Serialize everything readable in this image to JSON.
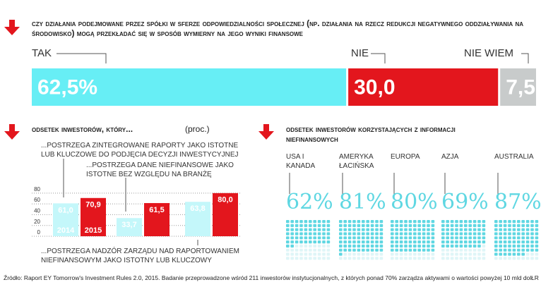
{
  "chart_data": [
    {
      "type": "stacked-bar",
      "title": "Czy działania podejmowane przez spółki w sferze odpowiedzialności społecznej (np. działania na rzecz redukcji negatywnego oddziaływania na środowisko) mogą przekładać się w sposób wymierny na jego wyniki finansowe",
      "categories": [
        "TAK",
        "NIE",
        "NIE WIEM"
      ],
      "values": [
        62.5,
        30.0,
        7.5
      ],
      "value_labels": [
        "62,5%",
        "30,0",
        "7,5"
      ],
      "colors": [
        "#67eef5",
        "#e3161d",
        "#c8cbcb"
      ],
      "xlim": [
        0,
        100
      ]
    },
    {
      "type": "grouped-bar",
      "title": "Odsetek inwestorów, który...",
      "subtitle": "(proc.)",
      "categories": [
        "...POSTRZEGA ZINTEGROWANE RAPORTY JAKO ISTOTNE LUB KLUCZOWE DO PODJĘCIA DECYZJI INWESTYCYJNEJ",
        "...POSTRZEGA DANE NIEFINANSOWE JAKO ISTOTNE BEZ WZGLĘDU NA BRANŻĘ",
        "...POSTRZEGA NADZÓR ZARZĄDU NAD RAPORTOWANIEM NIEFINANSOWYM JAKO ISTOTNY LUB KLUCZOWY"
      ],
      "series": [
        {
          "name": "2014",
          "color": "#c4f7fa",
          "values": [
            61.0,
            33.7,
            63.8
          ],
          "value_labels": [
            "61,0",
            "33,7",
            "63,8"
          ]
        },
        {
          "name": "2015",
          "color": "#e3161d",
          "values": [
            70.9,
            61.5,
            80.0
          ],
          "value_labels": [
            "70,9",
            "61,5",
            "80,0"
          ]
        }
      ],
      "ylim": [
        0,
        85
      ],
      "yticks": [
        0,
        20,
        40,
        60,
        80
      ],
      "grid": true
    },
    {
      "type": "waffle",
      "title": "Odsetek inwestorów korzystających z informacji niefinansowych",
      "categories": [
        "USA I KANADA",
        "AMERYKA ŁACIŃSKA",
        "EUROPA",
        "AZJA",
        "AUSTRALIA"
      ],
      "values": [
        62,
        81,
        80,
        69,
        87
      ],
      "value_labels": [
        "62%",
        "81%",
        "80%",
        "69%",
        "87%"
      ],
      "color": "#5fd7e2"
    }
  ],
  "source": "Źródło: Raport EY Tomorrow's Investment Rules 2.0, 2015. Badanie przeprowadzone wśród 211 inwestorów instytucjonalnych, z których ponad 70% zarządza aktywami o wartości powyżej 10 mld dol.",
  "credit": "ŁR"
}
